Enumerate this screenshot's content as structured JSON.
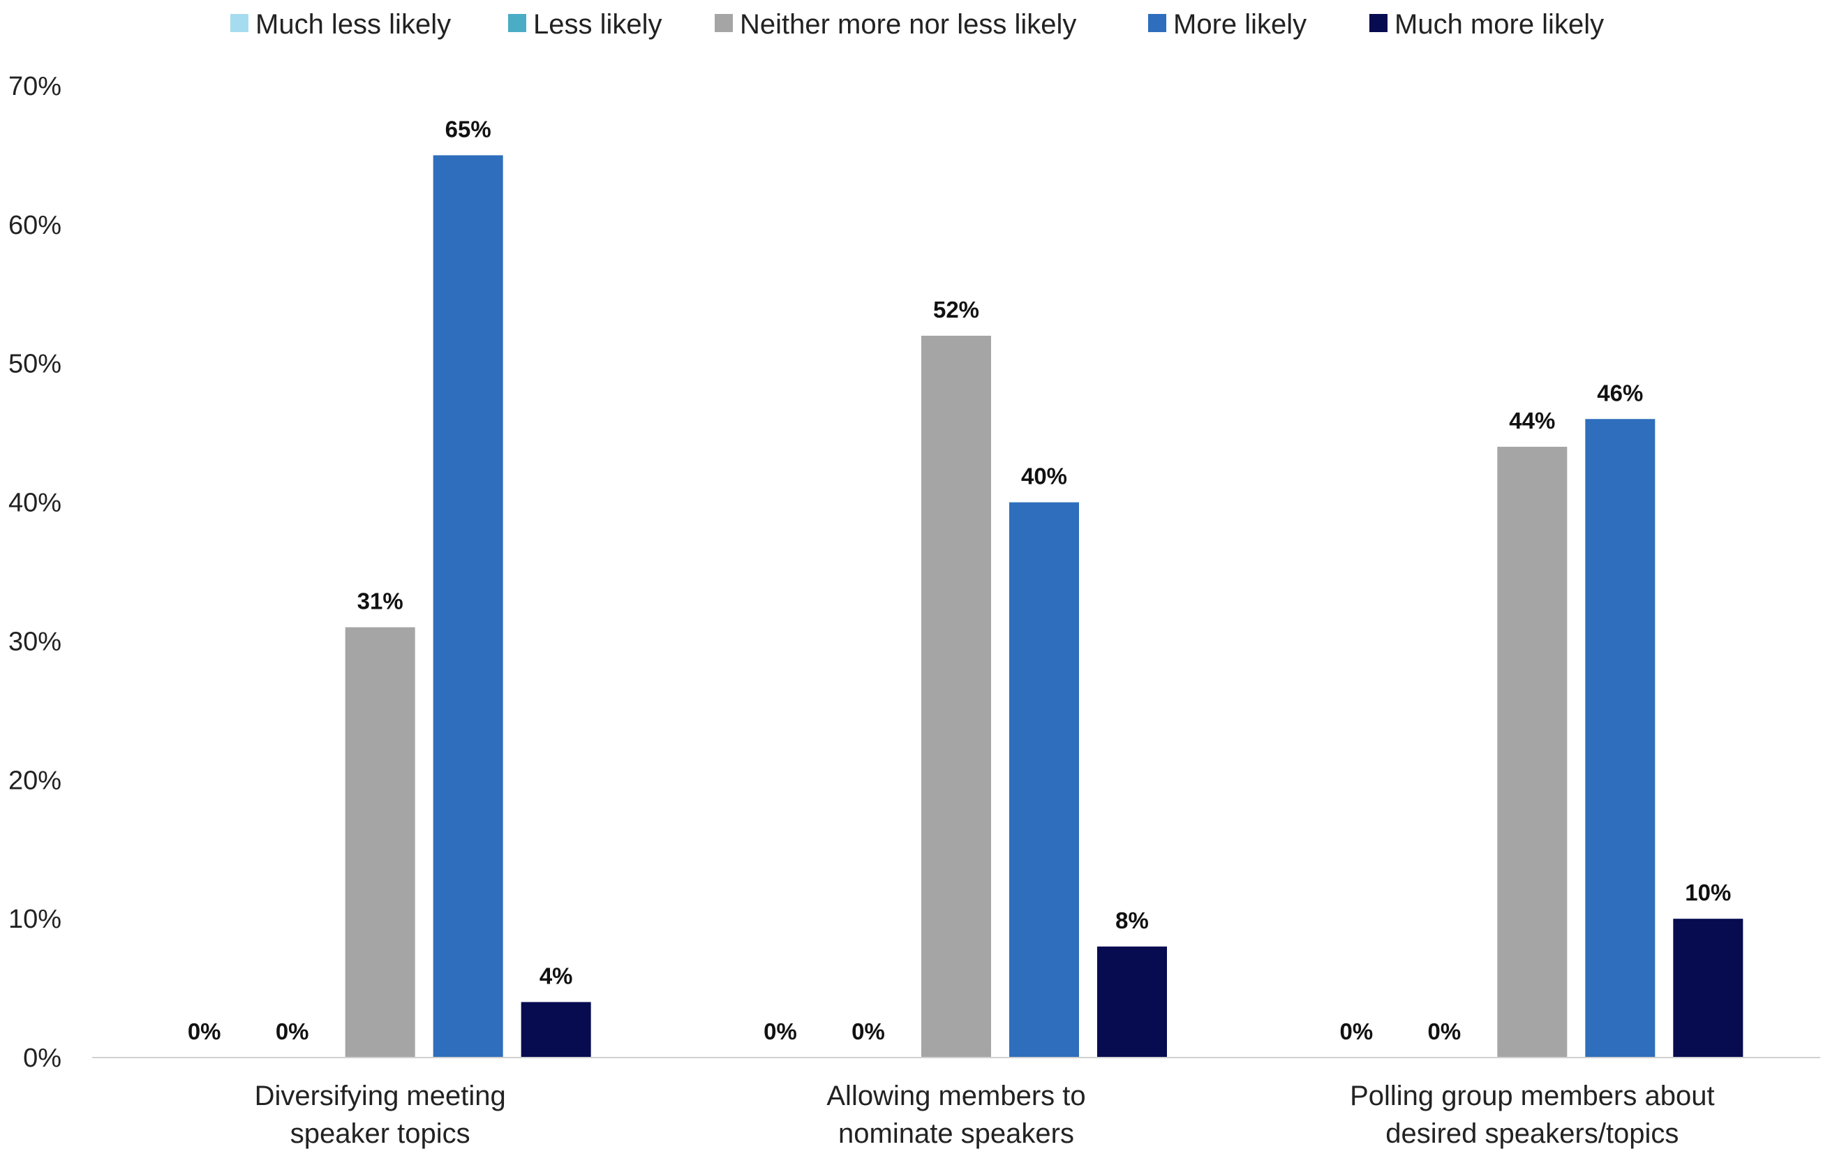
{
  "chart_data": {
    "type": "bar",
    "title": "",
    "xlabel": "",
    "ylabel": "",
    "ylim": [
      0,
      70
    ],
    "yticks": [
      0,
      10,
      20,
      30,
      40,
      50,
      60,
      70
    ],
    "ytick_format": "{v}%",
    "grid": false,
    "legend_position": "top",
    "categories": [
      [
        "Diversifying meeting",
        "speaker topics"
      ],
      [
        "Allowing members to",
        "nominate speakers"
      ],
      [
        "Polling group members about",
        "desired speakers/topics"
      ]
    ],
    "series": [
      {
        "name": "Much less likely",
        "color": "#a6dcef",
        "values": [
          0,
          0,
          0
        ],
        "labels": [
          "0%",
          "0%",
          "0%"
        ]
      },
      {
        "name": "Less likely",
        "color": "#4bacc6",
        "values": [
          0,
          0,
          0
        ],
        "labels": [
          "0%",
          "0%",
          "0%"
        ]
      },
      {
        "name": "Neither more nor less likely",
        "color": "#a5a5a5",
        "values": [
          31,
          52,
          44
        ],
        "labels": [
          "31%",
          "52%",
          "44%"
        ]
      },
      {
        "name": "More likely",
        "color": "#2e6ebd",
        "values": [
          65,
          40,
          46
        ],
        "labels": [
          "65%",
          "40%",
          "46%"
        ]
      },
      {
        "name": "Much more likely",
        "color": "#070b50",
        "values": [
          4,
          8,
          10
        ],
        "labels": [
          "4%",
          "8%",
          "10%"
        ]
      }
    ]
  }
}
